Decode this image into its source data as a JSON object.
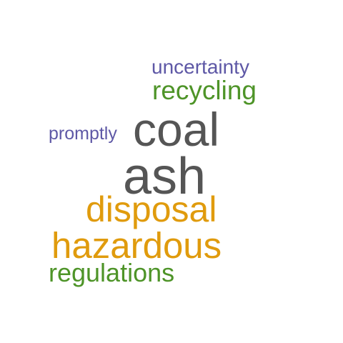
{
  "palette": {
    "purple": "#5e58a6",
    "green": "#4e9428",
    "gray": "#555555",
    "orange": "#e09b0d"
  },
  "words": [
    {
      "id": "uncertainty",
      "text": "uncertainty",
      "color": "#5e58a6"
    },
    {
      "id": "recycling",
      "text": "recycling",
      "color": "#4e9428"
    },
    {
      "id": "promptly",
      "text": "promptly",
      "color": "#5e58a6"
    },
    {
      "id": "coal",
      "text": "coal",
      "color": "#555555"
    },
    {
      "id": "ash",
      "text": "ash",
      "color": "#555555"
    },
    {
      "id": "disposal",
      "text": "disposal",
      "color": "#e09b0d"
    },
    {
      "id": "hazardous",
      "text": "hazardous",
      "color": "#e09b0d"
    },
    {
      "id": "regulations",
      "text": "regulations",
      "color": "#4e9428"
    }
  ]
}
